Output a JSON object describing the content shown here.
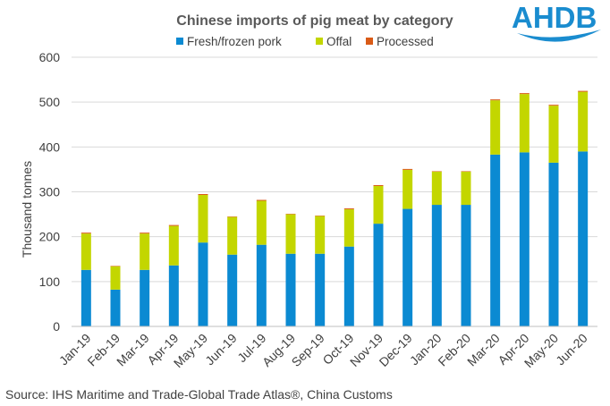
{
  "chart_data": {
    "type": "bar",
    "stacked": true,
    "title": "Chinese imports of pig meat by category",
    "xlabel": "",
    "ylabel": "Thousand tonnes",
    "ylim": [
      0,
      600
    ],
    "yticks": [
      0,
      100,
      200,
      300,
      400,
      500,
      600
    ],
    "grid": true,
    "legend_position": "top",
    "categories": [
      "Jan-19",
      "Feb-19",
      "Mar-19",
      "Apr-19",
      "May-19",
      "Jun-19",
      "Jul-19",
      "Aug-19",
      "Sep-19",
      "Oct-19",
      "Nov-19",
      "Dec-19",
      "Jan-20",
      "Feb-20",
      "Mar-20",
      "Apr-20",
      "May-20",
      "Jun-20"
    ],
    "series": [
      {
        "name": "Fresh/frozen pork",
        "color": "#0B8AD2",
        "values": [
          126,
          82,
          126,
          136,
          187,
          160,
          182,
          162,
          162,
          178,
          229,
          262,
          271,
          271,
          383,
          388,
          365,
          390
        ]
      },
      {
        "name": "Offal",
        "color": "#C3D600",
        "values": [
          81,
          52,
          81,
          88,
          106,
          84,
          98,
          88,
          84,
          83,
          84,
          87,
          74,
          74,
          121,
          130,
          127,
          133
        ]
      },
      {
        "name": "Processed",
        "color": "#D95B17",
        "values": [
          2,
          1,
          2,
          2,
          2,
          1,
          2,
          1,
          1,
          2,
          2,
          2,
          1,
          1,
          2,
          2,
          2,
          2
        ]
      }
    ]
  },
  "source": "Source: IHS Maritime and Trade-Global Trade Atlas®, China Customs",
  "logo": {
    "text": "AHDB",
    "color": "#1A8CCF"
  }
}
